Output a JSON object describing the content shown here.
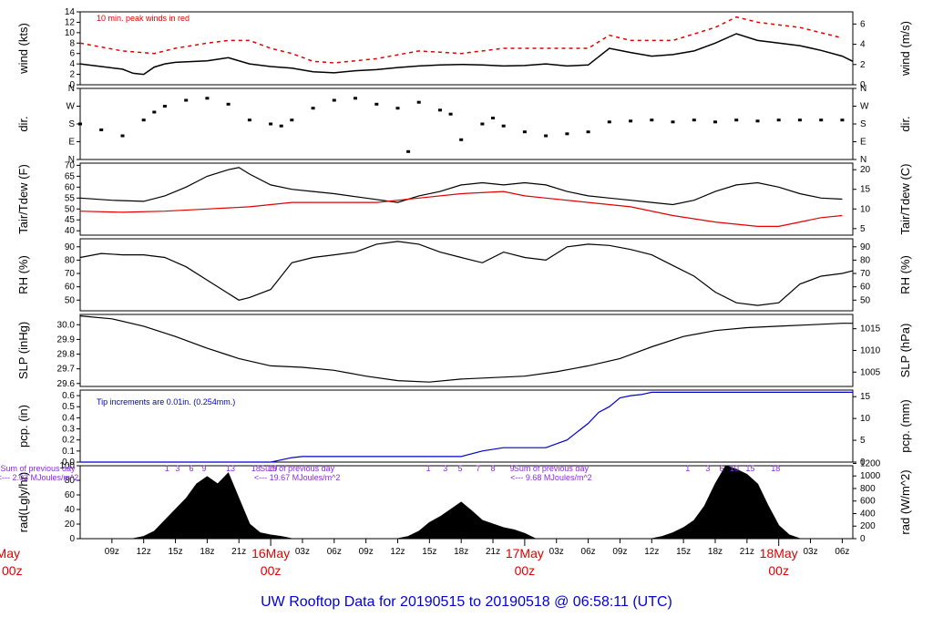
{
  "title": "UW Rooftop Data for 20190515  to  20190518 @ 06:58:11  (UTC)",
  "colors": {
    "axis": "#000000",
    "peak": "#e00000",
    "dew": "#e00000",
    "precip": "#0000cc",
    "sum": "#8a2be2",
    "day": "#e00000",
    "title": "#0000dd"
  },
  "x_axis": {
    "hour_labels": [
      {
        "t": 9,
        "label": "09z"
      },
      {
        "t": 12,
        "label": "12z"
      },
      {
        "t": 15,
        "label": "15z"
      },
      {
        "t": 18,
        "label": "18z"
      },
      {
        "t": 21,
        "label": "21z"
      },
      {
        "t": 27,
        "label": "03z"
      },
      {
        "t": 30,
        "label": "06z"
      },
      {
        "t": 33,
        "label": "09z"
      },
      {
        "t": 36,
        "label": "12z"
      },
      {
        "t": 39,
        "label": "15z"
      },
      {
        "t": 42,
        "label": "18z"
      },
      {
        "t": 45,
        "label": "21z"
      },
      {
        "t": 51,
        "label": "03z"
      },
      {
        "t": 54,
        "label": "06z"
      },
      {
        "t": 57,
        "label": "09z"
      },
      {
        "t": 60,
        "label": "12z"
      },
      {
        "t": 63,
        "label": "15z"
      },
      {
        "t": 66,
        "label": "18z"
      },
      {
        "t": 69,
        "label": "21z"
      },
      {
        "t": 75,
        "label": "03z"
      },
      {
        "t": 78,
        "label": "06z"
      }
    ],
    "day_labels": [
      {
        "t": 0,
        "date": "May",
        "hour": "00z"
      },
      {
        "t": 24,
        "date": "16May",
        "hour": "00z"
      },
      {
        "t": 48,
        "date": "17May",
        "hour": "00z"
      },
      {
        "t": 72,
        "date": "18May",
        "hour": "00z"
      }
    ]
  },
  "panels": {
    "wind": {
      "ylabel_left": "wind (kts)",
      "ylabel_right": "wind (m/s)",
      "left_ticks": [
        "0",
        "2",
        "4",
        "6",
        "8",
        "10",
        "12",
        "14"
      ],
      "right_ticks": [
        "0",
        "2",
        "4",
        "6"
      ],
      "note": "10 min. peak winds in red"
    },
    "dir": {
      "ylabel_left": "dir.",
      "ylabel_right": "dir.",
      "ticks": [
        "N",
        "E",
        "S",
        "W",
        "N"
      ]
    },
    "temp": {
      "ylabel_left": "Tair/Tdew (F)",
      "ylabel_right": "Tair/Tdew (C)",
      "left_ticks": [
        "40",
        "45",
        "50",
        "55",
        "60",
        "65",
        "70"
      ],
      "right_ticks": [
        "5",
        "10",
        "15",
        "20"
      ]
    },
    "rh": {
      "ylabel_left": "RH (%)",
      "ylabel_right": "RH (%)",
      "ticks": [
        "50",
        "60",
        "70",
        "80",
        "90"
      ]
    },
    "slp": {
      "ylabel_left": "SLP (inHg)",
      "ylabel_right": "SLP (hPa)",
      "left_ticks": [
        "29.6",
        "29.7",
        "29.8",
        "29.9",
        "30.0"
      ],
      "right_ticks": [
        "1005",
        "1010",
        "1015"
      ]
    },
    "pcp": {
      "ylabel_left": "pcp. (in)",
      "ylabel_right": "pcp. (mm)",
      "left_ticks": [
        "0.0",
        "0.1",
        "0.2",
        "0.3",
        "0.4",
        "0.5",
        "0.6"
      ],
      "right_ticks": [
        "0",
        "5",
        "10",
        "15"
      ],
      "note": "Tip increments are 0.01in. (0.254mm.)"
    },
    "rad": {
      "ylabel_left": "rad(Lgly/hr)",
      "ylabel_right": "rad (W/m^2)",
      "left_ticks": [
        "0",
        "20",
        "40",
        "60",
        "80",
        "100"
      ],
      "right_ticks": [
        "0",
        "200",
        "400",
        "600",
        "800",
        "1000",
        "1200"
      ]
    }
  },
  "radiation_sums": [
    {
      "t": 2,
      "line1": "Sum of previous day",
      "line2": "<--- 2.03 MJoules/m^2"
    },
    {
      "t": 26.5,
      "line1": "Sum of previous day",
      "line2": "<--- 19.67 MJoules/m^2"
    },
    {
      "t": 50.5,
      "line1": "Sum of previous day",
      "line2": "<--- 9.68 MJoules/m^2"
    }
  ],
  "solar_hour_marks": [
    {
      "t": 14.2,
      "label": "1"
    },
    {
      "t": 15.2,
      "label": "3"
    },
    {
      "t": 16.5,
      "label": "6"
    },
    {
      "t": 17.7,
      "label": "9"
    },
    {
      "t": 20.2,
      "label": "13"
    },
    {
      "t": 22.6,
      "label": "18"
    },
    {
      "t": 24.2,
      "label": "19"
    },
    {
      "t": 38.9,
      "label": "1"
    },
    {
      "t": 40.5,
      "label": "3"
    },
    {
      "t": 41.9,
      "label": "5"
    },
    {
      "t": 43.6,
      "label": "7"
    },
    {
      "t": 45.0,
      "label": "8"
    },
    {
      "t": 46.8,
      "label": "9"
    },
    {
      "t": 63.4,
      "label": "1"
    },
    {
      "t": 65.3,
      "label": "3"
    },
    {
      "t": 66.6,
      "label": "6"
    },
    {
      "t": 67.8,
      "label": "10"
    },
    {
      "t": 69.3,
      "label": "15"
    },
    {
      "t": 71.7,
      "label": "18"
    }
  ],
  "chart_data": {
    "type": "line",
    "title": "UW Rooftop Data for 20190515  to  20190518 @ 06:58:11  (UTC)",
    "x_unit": "hours since 2019-05-15 00z",
    "xlim": [
      6.0,
      79.0
    ],
    "series": [
      {
        "name": "wind (kts)",
        "ylim": [
          0,
          14
        ],
        "x": [
          6,
          8,
          10,
          11,
          12,
          13,
          14,
          15,
          18,
          20,
          22,
          24,
          26,
          28,
          30,
          32,
          34,
          36,
          38,
          40,
          42,
          44,
          46,
          48,
          50,
          52,
          54,
          56,
          58,
          60,
          62,
          64,
          66,
          68,
          70,
          72,
          74,
          76,
          78,
          79
        ],
        "y": [
          4,
          3.5,
          3,
          2.2,
          2,
          3.4,
          4,
          4.3,
          4.6,
          5.2,
          4,
          3.5,
          3.2,
          2.5,
          2.3,
          2.7,
          2.9,
          3.3,
          3.6,
          3.8,
          3.9,
          3.8,
          3.6,
          3.7,
          4,
          3.6,
          3.8,
          7,
          6.2,
          5.5,
          5.8,
          6.5,
          8,
          9.8,
          8.5,
          8,
          7.5,
          6.6,
          5.5,
          4.5
        ]
      },
      {
        "name": "10 min. peak winds",
        "ylim": [
          0,
          14
        ],
        "x": [
          6,
          10,
          13,
          15,
          18,
          20,
          22,
          24,
          26,
          28,
          30,
          34,
          38,
          42,
          46,
          50,
          54,
          56,
          58,
          62,
          66,
          68,
          70,
          72,
          74,
          76,
          78
        ],
        "y": [
          8,
          6.5,
          6,
          7,
          8,
          8.5,
          8.5,
          7,
          6,
          4.5,
          4.2,
          5,
          6.5,
          6,
          7,
          7,
          7,
          9.5,
          8.5,
          8.5,
          11,
          13,
          12,
          11.5,
          11,
          10,
          9
        ]
      },
      {
        "name": "dir. (deg)",
        "ylim": [
          0,
          360
        ],
        "x": [
          6,
          8,
          10,
          12,
          13,
          14,
          16,
          18,
          20,
          22,
          24,
          25,
          26,
          28,
          30,
          32,
          34,
          36,
          37,
          38,
          40,
          41,
          42,
          44,
          45,
          46,
          48,
          50,
          52,
          54,
          56,
          58,
          60,
          62,
          64,
          66,
          68,
          70,
          72,
          74,
          76,
          78
        ],
        "y": [
          180,
          150,
          120,
          200,
          240,
          270,
          300,
          310,
          280,
          200,
          180,
          170,
          200,
          260,
          300,
          310,
          280,
          260,
          40,
          290,
          250,
          230,
          100,
          180,
          210,
          170,
          140,
          120,
          130,
          140,
          190,
          195,
          200,
          190,
          200,
          190,
          200,
          195,
          200,
          200,
          200,
          200
        ]
      },
      {
        "name": "Tair (F)",
        "ylim": [
          38,
          71
        ],
        "x": [
          6,
          9,
          12,
          14,
          16,
          18,
          20,
          21,
          22,
          24,
          26,
          28,
          30,
          33,
          36,
          38,
          40,
          42,
          44,
          46,
          48,
          50,
          52,
          54,
          56,
          58,
          60,
          62,
          64,
          66,
          68,
          70,
          72,
          74,
          76,
          78
        ],
        "y": [
          55,
          54,
          53.5,
          56,
          60,
          65,
          68,
          69,
          66,
          61,
          59,
          58,
          57,
          55,
          53,
          56,
          58,
          61,
          62,
          61,
          62,
          61,
          58,
          56,
          55,
          54,
          53,
          52,
          54,
          58,
          61,
          62,
          60,
          57,
          55,
          54.5
        ]
      },
      {
        "name": "Tdew (F)",
        "ylim": [
          38,
          71
        ],
        "x": [
          6,
          10,
          14,
          18,
          22,
          26,
          30,
          34,
          38,
          42,
          46,
          48,
          50,
          54,
          58,
          62,
          66,
          68,
          70,
          72,
          74,
          76,
          78
        ],
        "y": [
          49,
          48.5,
          49,
          50,
          51,
          53,
          53,
          53,
          55,
          57,
          58,
          56,
          55,
          53,
          51,
          47,
          44,
          43,
          42,
          42,
          44,
          46,
          47
        ]
      },
      {
        "name": "RH (%)",
        "ylim": [
          42,
          96
        ],
        "x": [
          6,
          8,
          10,
          12,
          14,
          16,
          18,
          20,
          21,
          22,
          24,
          26,
          28,
          30,
          32,
          34,
          36,
          38,
          40,
          42,
          44,
          46,
          48,
          50,
          52,
          54,
          56,
          58,
          60,
          62,
          64,
          66,
          68,
          70,
          72,
          74,
          76,
          78,
          79
        ],
        "y": [
          82,
          85,
          84,
          84,
          82,
          75,
          65,
          55,
          50,
          52,
          58,
          78,
          82,
          84,
          86,
          92,
          94,
          92,
          86,
          82,
          78,
          86,
          82,
          80,
          90,
          92,
          91,
          88,
          84,
          76,
          68,
          56,
          48,
          46,
          48,
          62,
          68,
          70,
          72
        ]
      },
      {
        "name": "SLP (inHg)",
        "ylim": [
          29.58,
          30.07
        ],
        "x": [
          6,
          9,
          12,
          15,
          18,
          21,
          24,
          27,
          30,
          33,
          36,
          39,
          42,
          45,
          48,
          51,
          54,
          57,
          60,
          63,
          66,
          69,
          72,
          75,
          78,
          79
        ],
        "y": [
          30.06,
          30.04,
          29.99,
          29.92,
          29.84,
          29.77,
          29.72,
          29.71,
          29.69,
          29.65,
          29.62,
          29.61,
          29.63,
          29.64,
          29.65,
          29.68,
          29.72,
          29.77,
          29.85,
          29.92,
          29.96,
          29.98,
          29.99,
          30.0,
          30.01,
          30.01
        ]
      },
      {
        "name": "pcp. (in)",
        "ylim": [
          0,
          0.65
        ],
        "x": [
          6,
          24,
          24.5,
          26,
          27,
          28,
          30,
          32,
          34,
          36,
          38,
          40,
          42,
          44,
          46,
          48,
          50,
          52,
          54,
          55,
          56,
          57,
          58,
          59,
          60,
          79
        ],
        "y": [
          0,
          0,
          0.01,
          0.04,
          0.05,
          0.05,
          0.05,
          0.05,
          0.05,
          0.05,
          0.05,
          0.05,
          0.05,
          0.1,
          0.13,
          0.13,
          0.13,
          0.2,
          0.35,
          0.45,
          0.5,
          0.58,
          0.6,
          0.61,
          0.63,
          0.63
        ]
      },
      {
        "name": "rad (Lgly/hr)",
        "ylim": [
          0,
          100
        ],
        "x": [
          6,
          11,
          12,
          13,
          14,
          15,
          16,
          17,
          18,
          19,
          20,
          21,
          22,
          23,
          24,
          25,
          26,
          36,
          37,
          38,
          39,
          40,
          41,
          42,
          43,
          44,
          45,
          46,
          47,
          48,
          49,
          60,
          61,
          62,
          63,
          64,
          65,
          66,
          67,
          68,
          69,
          70,
          71,
          72,
          73,
          74
        ],
        "y": [
          0,
          0,
          3,
          10,
          25,
          40,
          55,
          75,
          85,
          75,
          90,
          55,
          20,
          8,
          5,
          3,
          0,
          0,
          3,
          10,
          22,
          30,
          40,
          50,
          38,
          25,
          20,
          15,
          12,
          7,
          0,
          0,
          3,
          8,
          15,
          25,
          45,
          75,
          110,
          95,
          88,
          75,
          45,
          18,
          5,
          0
        ]
      }
    ]
  }
}
